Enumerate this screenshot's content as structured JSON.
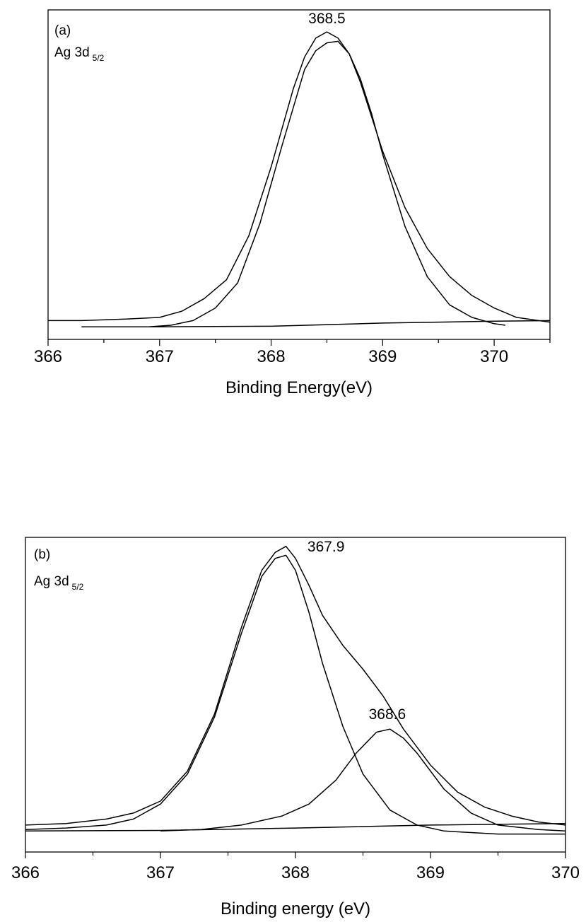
{
  "chart_data": [
    {
      "type": "line",
      "panel_label": "(a)",
      "species_main": "Ag 3d",
      "species_sub": "5/2",
      "xlabel": "Binding Energy(eV)",
      "ylabel": "",
      "xlim": [
        366,
        370.5
      ],
      "ylim": [
        0,
        1.05
      ],
      "y_ticks_shown": false,
      "grid": false,
      "ticks": [
        "366",
        "367",
        "368",
        "369",
        "370"
      ],
      "tick_values": [
        366,
        367,
        368,
        369,
        370
      ],
      "peaks": [
        {
          "label": "368.5",
          "x": 368.5
        }
      ],
      "series": [
        {
          "role": "envelope",
          "x": [
            366.0,
            366.3,
            366.7,
            367.0,
            367.2,
            367.4,
            367.6,
            367.8,
            368.0,
            368.2,
            368.3,
            368.4,
            368.5,
            368.6,
            368.7,
            368.8,
            368.9,
            369.0,
            369.2,
            369.4,
            369.6,
            369.8,
            370.0,
            370.2,
            370.5
          ],
          "y": [
            0.06,
            0.06,
            0.065,
            0.07,
            0.09,
            0.13,
            0.19,
            0.33,
            0.55,
            0.8,
            0.9,
            0.96,
            0.98,
            0.96,
            0.91,
            0.82,
            0.71,
            0.6,
            0.42,
            0.29,
            0.2,
            0.14,
            0.1,
            0.07,
            0.055
          ]
        },
        {
          "role": "fitted-component",
          "x": [
            366.9,
            367.1,
            367.3,
            367.5,
            367.7,
            367.9,
            368.1,
            368.3,
            368.4,
            368.5,
            368.6,
            368.7,
            368.8,
            368.9,
            369.0,
            369.2,
            369.4,
            369.6,
            369.8,
            370.0,
            370.1
          ],
          "y": [
            0.04,
            0.045,
            0.06,
            0.1,
            0.18,
            0.37,
            0.62,
            0.86,
            0.92,
            0.945,
            0.95,
            0.91,
            0.83,
            0.72,
            0.59,
            0.36,
            0.2,
            0.11,
            0.07,
            0.05,
            0.045
          ]
        },
        {
          "role": "baseline",
          "x": [
            366.3,
            367.0,
            368.0,
            369.0,
            370.0,
            370.5
          ],
          "y": [
            0.04,
            0.04,
            0.042,
            0.052,
            0.058,
            0.06
          ]
        }
      ]
    },
    {
      "type": "line",
      "panel_label": "(b)",
      "species_main": "Ag 3d",
      "species_sub": "5/2",
      "xlabel": "Binding energy (eV)",
      "ylabel": "",
      "xlim": [
        366,
        370
      ],
      "ylim": [
        0,
        1.05
      ],
      "y_ticks_shown": false,
      "grid": false,
      "ticks": [
        "366",
        "367",
        "368",
        "369",
        "370"
      ],
      "tick_values": [
        366,
        367,
        368,
        369,
        370
      ],
      "peaks": [
        {
          "label": "367.9",
          "x": 367.9
        },
        {
          "label": "368.6",
          "x": 368.68
        }
      ],
      "series": [
        {
          "role": "envelope",
          "x": [
            366.0,
            366.3,
            366.6,
            366.8,
            367.0,
            367.2,
            367.4,
            367.6,
            367.75,
            367.85,
            367.93,
            368.0,
            368.1,
            368.2,
            368.35,
            368.5,
            368.65,
            368.8,
            369.0,
            369.2,
            369.4,
            369.6,
            369.8,
            370.0
          ],
          "y": [
            0.09,
            0.095,
            0.11,
            0.13,
            0.17,
            0.27,
            0.46,
            0.75,
            0.94,
            1.0,
            1.02,
            0.98,
            0.89,
            0.79,
            0.69,
            0.61,
            0.52,
            0.41,
            0.29,
            0.2,
            0.15,
            0.12,
            0.1,
            0.09
          ]
        },
        {
          "role": "component-367.9",
          "x": [
            366.0,
            366.3,
            366.6,
            366.8,
            367.0,
            367.2,
            367.4,
            367.6,
            367.75,
            367.85,
            367.93,
            368.0,
            368.1,
            368.2,
            368.35,
            368.5,
            368.7,
            368.9,
            369.1,
            369.3,
            369.5,
            370.0
          ],
          "y": [
            0.075,
            0.08,
            0.09,
            0.11,
            0.16,
            0.26,
            0.45,
            0.73,
            0.92,
            0.98,
            0.99,
            0.94,
            0.8,
            0.63,
            0.42,
            0.26,
            0.14,
            0.09,
            0.07,
            0.065,
            0.06,
            0.06
          ]
        },
        {
          "role": "component-368.6",
          "x": [
            367.0,
            367.3,
            367.6,
            367.9,
            368.1,
            368.3,
            368.45,
            368.6,
            368.7,
            368.8,
            368.9,
            369.1,
            369.3,
            369.5,
            369.8,
            370.0
          ],
          "y": [
            0.07,
            0.075,
            0.09,
            0.12,
            0.16,
            0.24,
            0.33,
            0.4,
            0.41,
            0.38,
            0.33,
            0.21,
            0.13,
            0.09,
            0.075,
            0.07
          ]
        },
        {
          "role": "baseline",
          "x": [
            366.0,
            367.0,
            368.0,
            369.0,
            370.0
          ],
          "y": [
            0.07,
            0.072,
            0.08,
            0.09,
            0.095
          ]
        }
      ]
    }
  ]
}
